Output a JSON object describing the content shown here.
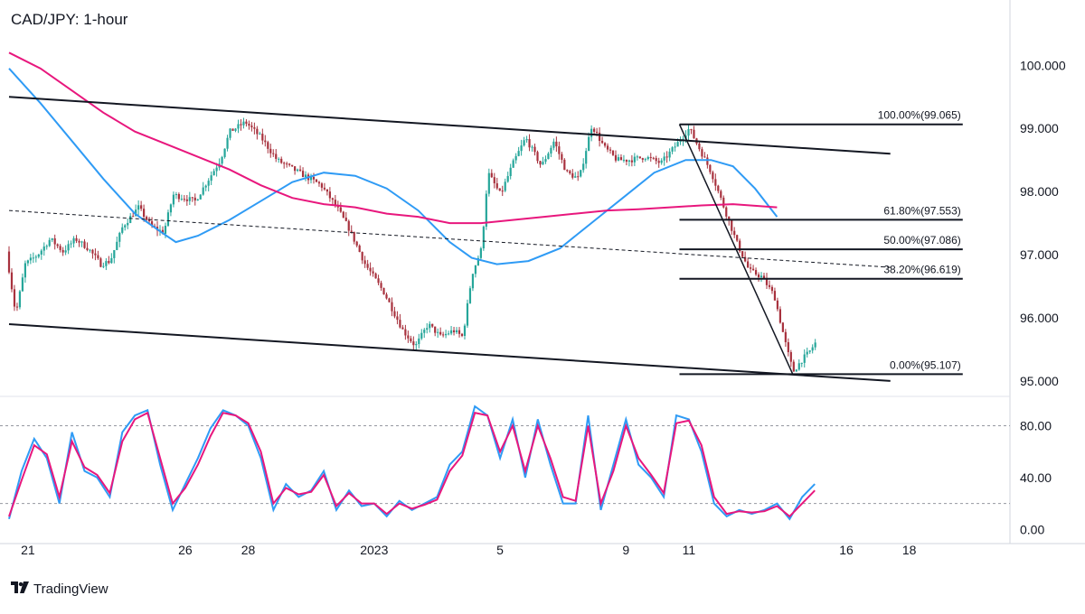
{
  "header": {
    "title": "CAD/JPY: 1-hour"
  },
  "brand": {
    "logo_icon": "tradingview-logo-icon",
    "name": "TradingView"
  },
  "colors": {
    "candle_up": "#26a69a",
    "candle_down": "#a8323e",
    "ma_fast": "#2f9bf5",
    "ma_slow": "#e8177d",
    "stoch_k": "#2f9bf5",
    "stoch_d": "#e8177d",
    "trendline": "#131722"
  },
  "chart_data": [
    {
      "type": "candlestick",
      "title": "CAD/JPY: 1-hour",
      "x_ticks": [
        {
          "label": "21",
          "x": 0.6
        },
        {
          "label": "26",
          "x": 5.6
        },
        {
          "label": "28",
          "x": 7.6
        },
        {
          "label": "2023",
          "x": 11.6
        },
        {
          "label": "5",
          "x": 15.6
        },
        {
          "label": "9",
          "x": 19.6
        },
        {
          "label": "11",
          "x": 21.6
        },
        {
          "label": "16",
          "x": 26.6
        },
        {
          "label": "18",
          "x": 28.6
        }
      ],
      "xlim": [
        0,
        31.8
      ],
      "ylim": [
        94.77,
        100.92
      ],
      "y_ticks": [
        "95.000",
        "96.000",
        "97.000",
        "98.000",
        "99.000",
        "100.000"
      ],
      "price_path": [
        [
          0.0,
          97.05
        ],
        [
          0.3,
          96.05
        ],
        [
          0.6,
          96.85
        ],
        [
          1.0,
          97.0
        ],
        [
          1.4,
          97.25
        ],
        [
          1.8,
          97.05
        ],
        [
          2.2,
          97.25
        ],
        [
          2.6,
          97.1
        ],
        [
          3.0,
          96.85
        ],
        [
          3.3,
          96.9
        ],
        [
          3.7,
          97.45
        ],
        [
          4.2,
          97.75
        ],
        [
          4.6,
          97.45
        ],
        [
          5.0,
          97.35
        ],
        [
          5.3,
          97.95
        ],
        [
          6.0,
          97.85
        ],
        [
          6.8,
          98.5
        ],
        [
          7.1,
          98.95
        ],
        [
          7.6,
          99.1
        ],
        [
          8.1,
          98.85
        ],
        [
          8.6,
          98.5
        ],
        [
          9.3,
          98.3
        ],
        [
          10.0,
          98.1
        ],
        [
          10.5,
          97.75
        ],
        [
          10.9,
          97.4
        ],
        [
          11.4,
          96.85
        ],
        [
          12.0,
          96.4
        ],
        [
          12.6,
          95.8
        ],
        [
          13.0,
          95.55
        ],
        [
          13.4,
          95.9
        ],
        [
          13.8,
          95.7
        ],
        [
          14.2,
          95.8
        ],
        [
          14.5,
          95.7
        ],
        [
          14.8,
          96.7
        ],
        [
          15.1,
          97.1
        ],
        [
          15.3,
          98.3
        ],
        [
          15.7,
          97.95
        ],
        [
          16.1,
          98.45
        ],
        [
          16.5,
          98.85
        ],
        [
          17.0,
          98.4
        ],
        [
          17.4,
          98.8
        ],
        [
          17.8,
          98.3
        ],
        [
          18.2,
          98.2
        ],
        [
          18.6,
          99.05
        ],
        [
          19.0,
          98.7
        ],
        [
          19.4,
          98.5
        ],
        [
          19.8,
          98.5
        ],
        [
          20.3,
          98.55
        ],
        [
          20.8,
          98.45
        ],
        [
          21.3,
          98.75
        ],
        [
          21.7,
          99.0
        ],
        [
          22.0,
          98.7
        ],
        [
          22.4,
          98.3
        ],
        [
          22.8,
          97.75
        ],
        [
          23.2,
          97.2
        ],
        [
          23.6,
          96.75
        ],
        [
          24.0,
          96.65
        ],
        [
          24.4,
          96.35
        ],
        [
          24.8,
          95.5
        ],
        [
          25.0,
          95.15
        ],
        [
          25.3,
          95.35
        ],
        [
          25.5,
          95.45
        ],
        [
          25.7,
          95.6
        ]
      ],
      "moving_averages": [
        {
          "name": "fast MA",
          "color": "#2f9bf5",
          "points": [
            [
              0.0,
              99.95
            ],
            [
              1.0,
              99.4
            ],
            [
              2.0,
              98.8
            ],
            [
              3.0,
              98.2
            ],
            [
              4.0,
              97.65
            ],
            [
              5.0,
              97.3
            ],
            [
              5.3,
              97.2
            ],
            [
              6.0,
              97.3
            ],
            [
              7.0,
              97.55
            ],
            [
              8.0,
              97.85
            ],
            [
              9.0,
              98.15
            ],
            [
              10.0,
              98.3
            ],
            [
              11.0,
              98.25
            ],
            [
              12.0,
              98.05
            ],
            [
              13.0,
              97.7
            ],
            [
              14.0,
              97.2
            ],
            [
              14.7,
              96.95
            ],
            [
              15.5,
              96.85
            ],
            [
              16.5,
              96.9
            ],
            [
              17.5,
              97.1
            ],
            [
              18.5,
              97.5
            ],
            [
              19.5,
              97.9
            ],
            [
              20.5,
              98.3
            ],
            [
              21.5,
              98.5
            ],
            [
              22.3,
              98.5
            ],
            [
              23.0,
              98.4
            ],
            [
              23.7,
              98.05
            ],
            [
              24.4,
              97.6
            ]
          ]
        },
        {
          "name": "slow MA",
          "color": "#e8177d",
          "points": [
            [
              0.0,
              100.2
            ],
            [
              1.0,
              99.95
            ],
            [
              2.0,
              99.6
            ],
            [
              3.0,
              99.25
            ],
            [
              4.0,
              98.95
            ],
            [
              5.0,
              98.75
            ],
            [
              6.0,
              98.55
            ],
            [
              7.0,
              98.35
            ],
            [
              8.0,
              98.1
            ],
            [
              9.0,
              97.9
            ],
            [
              10.0,
              97.8
            ],
            [
              11.0,
              97.75
            ],
            [
              12.0,
              97.65
            ],
            [
              13.0,
              97.6
            ],
            [
              14.0,
              97.5
            ],
            [
              15.0,
              97.5
            ],
            [
              16.0,
              97.55
            ],
            [
              17.0,
              97.6
            ],
            [
              18.0,
              97.65
            ],
            [
              19.0,
              97.7
            ],
            [
              20.0,
              97.72
            ],
            [
              21.0,
              97.75
            ],
            [
              22.0,
              97.78
            ],
            [
              23.0,
              97.8
            ],
            [
              24.4,
              97.75
            ]
          ]
        }
      ],
      "channel_lines": [
        {
          "name": "upper",
          "from": [
            0.0,
            99.5
          ],
          "to": [
            28.0,
            98.6
          ]
        },
        {
          "name": "lower",
          "from": [
            0.0,
            95.9
          ],
          "to": [
            28.0,
            95.0
          ]
        },
        {
          "name": "mid",
          "from": [
            0.0,
            97.7
          ],
          "to": [
            28.0,
            96.8
          ],
          "dashed": true
        }
      ],
      "swing_line": {
        "from": [
          21.3,
          99.065
        ],
        "to": [
          24.9,
          95.107
        ]
      },
      "fibonacci": {
        "start_x": 21.3,
        "end_x": 30.3,
        "levels": [
          {
            "label": "100.00%(99.065)",
            "value": 99.065
          },
          {
            "label": "61.80%(97.553)",
            "value": 97.553
          },
          {
            "label": "50.00%(97.086)",
            "value": 97.086
          },
          {
            "label": "38.20%(96.619)",
            "value": 96.619
          },
          {
            "label": "0.00%(95.107)",
            "value": 95.107
          }
        ]
      }
    },
    {
      "type": "line",
      "title": "",
      "xlim": [
        0,
        31.8
      ],
      "ylim": [
        -4,
        102
      ],
      "y_ticks": [
        "0.00",
        "40.00",
        "80.00"
      ],
      "guides": [
        80,
        20
      ],
      "series": [
        {
          "color": "#2f9bf5",
          "values": [
            [
              0.0,
              8
            ],
            [
              0.4,
              45
            ],
            [
              0.8,
              70
            ],
            [
              1.2,
              55
            ],
            [
              1.6,
              20
            ],
            [
              2.0,
              75
            ],
            [
              2.4,
              45
            ],
            [
              2.8,
              40
            ],
            [
              3.2,
              25
            ],
            [
              3.6,
              75
            ],
            [
              4.0,
              88
            ],
            [
              4.4,
              92
            ],
            [
              4.8,
              50
            ],
            [
              5.2,
              15
            ],
            [
              5.6,
              35
            ],
            [
              6.0,
              55
            ],
            [
              6.4,
              78
            ],
            [
              6.8,
              92
            ],
            [
              7.2,
              88
            ],
            [
              7.6,
              80
            ],
            [
              8.0,
              55
            ],
            [
              8.4,
              15
            ],
            [
              8.8,
              35
            ],
            [
              9.2,
              25
            ],
            [
              9.6,
              30
            ],
            [
              10.0,
              45
            ],
            [
              10.4,
              15
            ],
            [
              10.8,
              30
            ],
            [
              11.2,
              18
            ],
            [
              11.6,
              20
            ],
            [
              12.0,
              10
            ],
            [
              12.4,
              22
            ],
            [
              12.8,
              15
            ],
            [
              13.2,
              20
            ],
            [
              13.6,
              25
            ],
            [
              14.0,
              50
            ],
            [
              14.4,
              60
            ],
            [
              14.8,
              95
            ],
            [
              15.2,
              88
            ],
            [
              15.6,
              55
            ],
            [
              16.0,
              85
            ],
            [
              16.4,
              40
            ],
            [
              16.8,
              85
            ],
            [
              17.2,
              50
            ],
            [
              17.6,
              20
            ],
            [
              18.0,
              20
            ],
            [
              18.4,
              88
            ],
            [
              18.8,
              15
            ],
            [
              19.2,
              50
            ],
            [
              19.6,
              85
            ],
            [
              20.0,
              50
            ],
            [
              20.4,
              40
            ],
            [
              20.8,
              25
            ],
            [
              21.2,
              88
            ],
            [
              21.6,
              85
            ],
            [
              22.0,
              60
            ],
            [
              22.4,
              20
            ],
            [
              22.8,
              10
            ],
            [
              23.2,
              15
            ],
            [
              23.6,
              12
            ],
            [
              24.0,
              15
            ],
            [
              24.4,
              20
            ],
            [
              24.8,
              8
            ],
            [
              25.2,
              25
            ],
            [
              25.6,
              35
            ]
          ]
        },
        {
          "color": "#e8177d",
          "values": [
            [
              0.0,
              10
            ],
            [
              0.4,
              38
            ],
            [
              0.8,
              65
            ],
            [
              1.2,
              58
            ],
            [
              1.6,
              25
            ],
            [
              2.0,
              68
            ],
            [
              2.4,
              48
            ],
            [
              2.8,
              42
            ],
            [
              3.2,
              28
            ],
            [
              3.6,
              68
            ],
            [
              4.0,
              85
            ],
            [
              4.4,
              90
            ],
            [
              4.8,
              55
            ],
            [
              5.2,
              20
            ],
            [
              5.6,
              32
            ],
            [
              6.0,
              50
            ],
            [
              6.4,
              72
            ],
            [
              6.8,
              90
            ],
            [
              7.2,
              88
            ],
            [
              7.6,
              82
            ],
            [
              8.0,
              60
            ],
            [
              8.4,
              20
            ],
            [
              8.8,
              32
            ],
            [
              9.2,
              27
            ],
            [
              9.6,
              29
            ],
            [
              10.0,
              42
            ],
            [
              10.4,
              18
            ],
            [
              10.8,
              28
            ],
            [
              11.2,
              20
            ],
            [
              11.6,
              20
            ],
            [
              12.0,
              12
            ],
            [
              12.4,
              20
            ],
            [
              12.8,
              16
            ],
            [
              13.2,
              19
            ],
            [
              13.6,
              23
            ],
            [
              14.0,
              45
            ],
            [
              14.4,
              57
            ],
            [
              14.8,
              90
            ],
            [
              15.2,
              88
            ],
            [
              15.6,
              60
            ],
            [
              16.0,
              80
            ],
            [
              16.4,
              45
            ],
            [
              16.8,
              80
            ],
            [
              17.2,
              55
            ],
            [
              17.6,
              25
            ],
            [
              18.0,
              22
            ],
            [
              18.4,
              80
            ],
            [
              18.8,
              20
            ],
            [
              19.2,
              45
            ],
            [
              19.6,
              80
            ],
            [
              20.0,
              55
            ],
            [
              20.4,
              42
            ],
            [
              20.8,
              28
            ],
            [
              21.2,
              82
            ],
            [
              21.6,
              84
            ],
            [
              22.0,
              65
            ],
            [
              22.4,
              25
            ],
            [
              22.8,
              12
            ],
            [
              23.2,
              14
            ],
            [
              23.6,
              13
            ],
            [
              24.0,
              14
            ],
            [
              24.4,
              18
            ],
            [
              24.8,
              10
            ],
            [
              25.2,
              20
            ],
            [
              25.6,
              30
            ]
          ]
        }
      ]
    }
  ]
}
